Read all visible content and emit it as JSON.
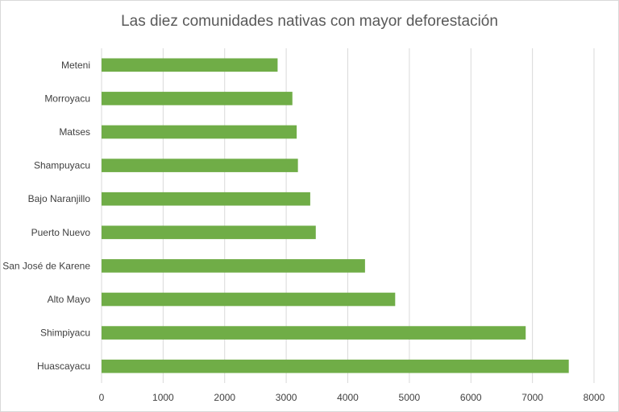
{
  "chart_data": {
    "type": "bar",
    "orientation": "horizontal",
    "title": "Las diez comunidades nativas con mayor deforestación",
    "xlabel": "",
    "ylabel": "",
    "categories": [
      "Huascayacu",
      "Shimpiyacu",
      "Alto Mayo",
      "San José de Karene",
      "Puerto Nuevo",
      "Bajo Naranjillo",
      "Shampuyacu",
      "Matses",
      "Morroyacu",
      "Meteni"
    ],
    "values": [
      7590,
      6890,
      4770,
      4280,
      3480,
      3390,
      3190,
      3170,
      3100,
      2860
    ],
    "xlim": [
      0,
      8000
    ],
    "xticks": [
      0,
      1000,
      2000,
      3000,
      4000,
      5000,
      6000,
      7000,
      8000
    ],
    "grid": true,
    "legend": "none",
    "bar_color": "#70ad47",
    "grid_color": "#d9d9d9"
  }
}
